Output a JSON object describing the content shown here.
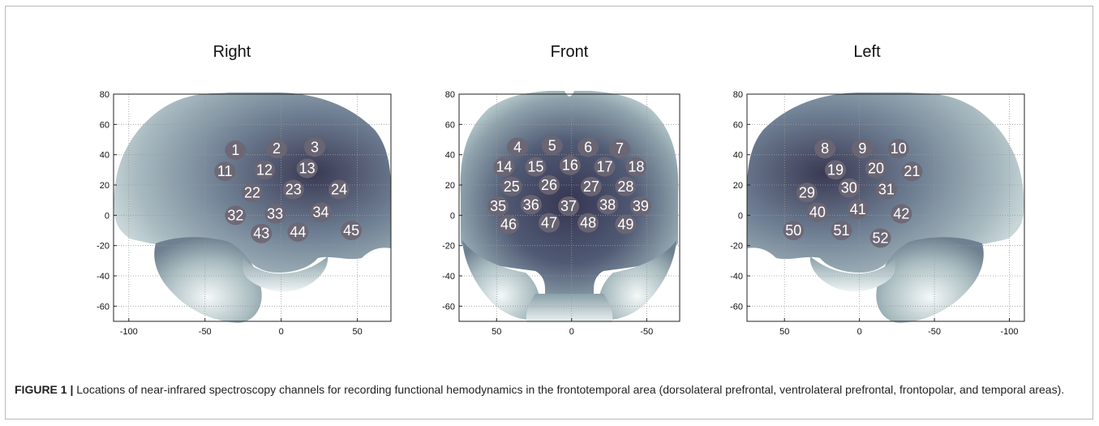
{
  "panels": [
    {
      "title": "Right",
      "x_ticks": [
        "-100",
        "-50",
        "0",
        "50"
      ],
      "y_ticks": [
        "80",
        "60",
        "40",
        "20",
        "0",
        "-20",
        "-40",
        "-60"
      ],
      "channels": [
        {
          "n": "1",
          "x": -30,
          "y": 43
        },
        {
          "n": "2",
          "x": -3,
          "y": 44
        },
        {
          "n": "3",
          "x": 22,
          "y": 45
        },
        {
          "n": "11",
          "x": -37,
          "y": 29
        },
        {
          "n": "12",
          "x": -11,
          "y": 30
        },
        {
          "n": "13",
          "x": 17,
          "y": 31
        },
        {
          "n": "22",
          "x": -19,
          "y": 15
        },
        {
          "n": "23",
          "x": 8,
          "y": 17
        },
        {
          "n": "24",
          "x": 38,
          "y": 17
        },
        {
          "n": "32",
          "x": -30,
          "y": 0
        },
        {
          "n": "33",
          "x": -4,
          "y": 1
        },
        {
          "n": "34",
          "x": 26,
          "y": 2
        },
        {
          "n": "43",
          "x": -13,
          "y": -12
        },
        {
          "n": "44",
          "x": 11,
          "y": -11
        },
        {
          "n": "45",
          "x": 46,
          "y": -10
        }
      ]
    },
    {
      "title": "Front",
      "x_ticks": [
        "50",
        "0",
        "-50"
      ],
      "y_ticks": [
        "80",
        "60",
        "40",
        "20",
        "0",
        "-20",
        "-40",
        "-60"
      ],
      "channels": [
        {
          "n": "4",
          "x": 36,
          "y": 45
        },
        {
          "n": "5",
          "x": 13,
          "y": 46
        },
        {
          "n": "6",
          "x": -11,
          "y": 45
        },
        {
          "n": "7",
          "x": -32,
          "y": 44
        },
        {
          "n": "14",
          "x": 45,
          "y": 32
        },
        {
          "n": "15",
          "x": 24,
          "y": 32
        },
        {
          "n": "16",
          "x": 1,
          "y": 33
        },
        {
          "n": "17",
          "x": -22,
          "y": 32
        },
        {
          "n": "18",
          "x": -43,
          "y": 32
        },
        {
          "n": "25",
          "x": 40,
          "y": 19
        },
        {
          "n": "26",
          "x": 15,
          "y": 20
        },
        {
          "n": "27",
          "x": -13,
          "y": 19
        },
        {
          "n": "28",
          "x": -36,
          "y": 19
        },
        {
          "n": "35",
          "x": 49,
          "y": 6
        },
        {
          "n": "36",
          "x": 27,
          "y": 7
        },
        {
          "n": "37",
          "x": 2,
          "y": 6
        },
        {
          "n": "38",
          "x": -24,
          "y": 7
        },
        {
          "n": "39",
          "x": -46,
          "y": 6
        },
        {
          "n": "46",
          "x": 42,
          "y": -6
        },
        {
          "n": "47",
          "x": 15,
          "y": -5
        },
        {
          "n": "48",
          "x": -11,
          "y": -5
        },
        {
          "n": "49",
          "x": -36,
          "y": -6
        }
      ]
    },
    {
      "title": "Left",
      "x_ticks": [
        "50",
        "0",
        "-50",
        "-100"
      ],
      "y_ticks": [
        "80",
        "60",
        "40",
        "20",
        "0",
        "-20",
        "-40",
        "-60"
      ],
      "channels": [
        {
          "n": "8",
          "x": 23,
          "y": 44
        },
        {
          "n": "9",
          "x": -2,
          "y": 44
        },
        {
          "n": "10",
          "x": -26,
          "y": 44
        },
        {
          "n": "19",
          "x": 16,
          "y": 30
        },
        {
          "n": "20",
          "x": -11,
          "y": 31
        },
        {
          "n": "21",
          "x": -35,
          "y": 29
        },
        {
          "n": "29",
          "x": 35,
          "y": 15
        },
        {
          "n": "30",
          "x": 7,
          "y": 18
        },
        {
          "n": "31",
          "x": -18,
          "y": 17
        },
        {
          "n": "40",
          "x": 28,
          "y": 2
        },
        {
          "n": "41",
          "x": 1,
          "y": 4
        },
        {
          "n": "42",
          "x": -28,
          "y": 1
        },
        {
          "n": "50",
          "x": 44,
          "y": -10
        },
        {
          "n": "51",
          "x": 12,
          "y": -10
        },
        {
          "n": "52",
          "x": -14,
          "y": -15
        }
      ]
    }
  ],
  "caption": {
    "label": "FIGURE 1 |",
    "text": " Locations of near-infrared spectroscopy channels for recording functional hemodynamics in the frontotemporal area (dorsolateral prefrontal, ventrolateral prefrontal, frontopolar, and temporal areas)."
  },
  "colors": {
    "brain_dark": "#3a3954",
    "brain_mid": "#7f90a0",
    "brain_light": "#e7efef",
    "channel": "#6d6672",
    "label": "#ffffff"
  }
}
